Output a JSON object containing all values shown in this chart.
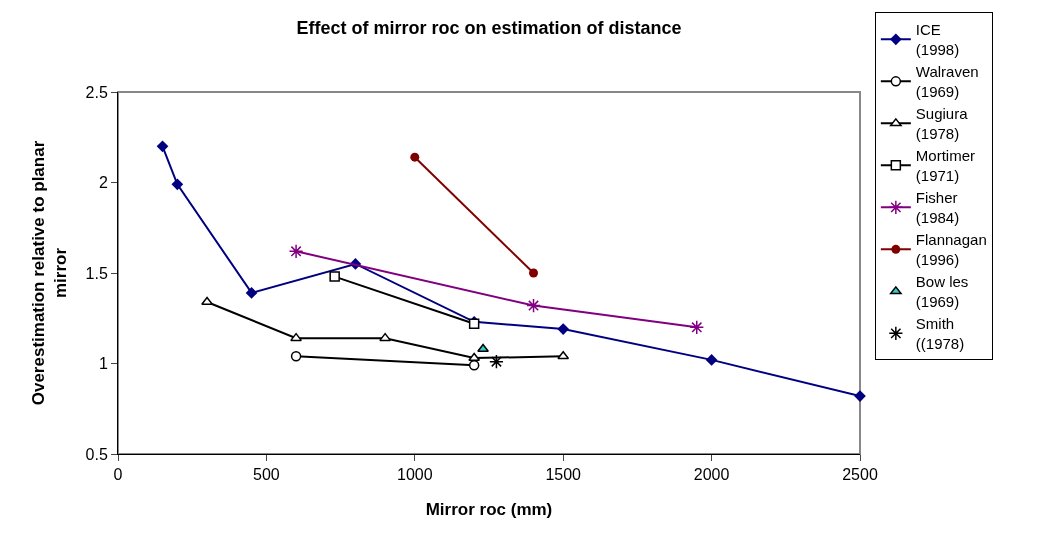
{
  "chart_data": {
    "type": "line",
    "title": "Effect of mirror roc on estimation of distance",
    "xlabel": "Mirror roc (mm)",
    "ylabel": "Overestimation relative to planar mirror",
    "xlim": [
      0,
      2500
    ],
    "xticks": [
      0,
      500,
      1000,
      1500,
      2000,
      2500
    ],
    "ylim": [
      0.5,
      2.5
    ],
    "yticks": [
      0.5,
      1,
      1.5,
      2,
      2.5
    ],
    "grid": false,
    "legend": "right",
    "series": [
      {
        "name": "ICE (1998)",
        "color": "#000080",
        "marker": "diamond",
        "x": [
          150,
          200,
          450,
          800,
          1200,
          1500,
          2000,
          2500
        ],
        "values": [
          2.2,
          1.99,
          1.39,
          1.55,
          1.23,
          1.19,
          1.02,
          0.82
        ]
      },
      {
        "name": "Walraven (1969)",
        "color": "#000000",
        "marker": "circle",
        "x": [
          600,
          1200
        ],
        "values": [
          1.04,
          0.99
        ]
      },
      {
        "name": "Sugiura (1978)",
        "color": "#000000",
        "marker": "triangle",
        "x": [
          300,
          600,
          900,
          1200,
          1500
        ],
        "values": [
          1.34,
          1.14,
          1.14,
          1.03,
          1.04
        ]
      },
      {
        "name": "Mortimer (1971)",
        "color": "#000000",
        "marker": "square",
        "x": [
          730,
          1200
        ],
        "values": [
          1.48,
          1.22
        ]
      },
      {
        "name": "Fisher (1984)",
        "color": "#800080",
        "marker": "cross",
        "x": [
          600,
          1400,
          1950
        ],
        "values": [
          1.62,
          1.32,
          1.2
        ]
      },
      {
        "name": "Flannagan (1996)",
        "color": "#800000",
        "marker": "circle",
        "x": [
          1000,
          1400
        ],
        "values": [
          2.14,
          1.5
        ]
      },
      {
        "name": "Bow les (1969)",
        "type": "scatter",
        "color": "#33cccc",
        "marker": "triangle",
        "x": [
          1230
        ],
        "values": [
          1.08
        ]
      },
      {
        "name": "Smith ((1978)",
        "type": "scatter",
        "color": "#000000",
        "marker": "cross",
        "x": [
          1275
        ],
        "values": [
          1.01
        ]
      }
    ]
  }
}
